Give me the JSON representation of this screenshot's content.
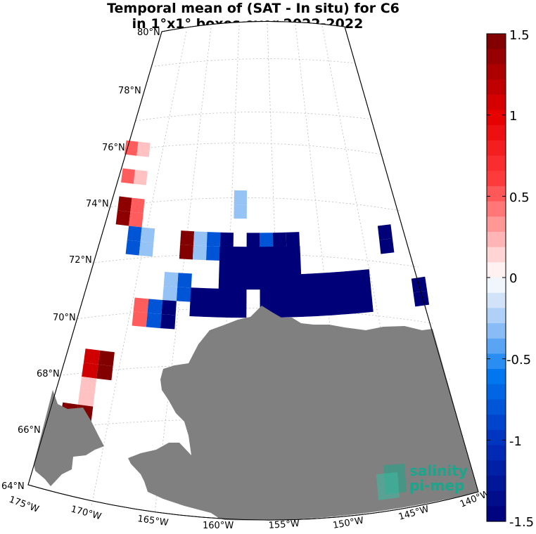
{
  "title": {
    "line1": "Temporal mean of (SAT - In situ) for C6",
    "line2": "in 1°x1° boxes over 2022-2022"
  },
  "lat_labels": [
    "80°N",
    "78°N",
    "76°N",
    "74°N",
    "72°N",
    "70°N",
    "68°N",
    "66°N",
    "64°N"
  ],
  "lon_labels": [
    "175°W",
    "170°W",
    "165°W",
    "160°W",
    "155°W",
    "150°W",
    "145°W",
    "140°W"
  ],
  "colorbar": {
    "min": -1.5,
    "max": 1.5,
    "tick_labels": [
      "1.5",
      "1",
      "0.5",
      "0",
      "-0.5",
      "-1",
      "-1.5"
    ],
    "colormap": "blue-white-red"
  },
  "colors": {
    "land": "#808080",
    "ocean": "#ffffff",
    "logo": "#1aa68a"
  },
  "logo": {
    "line1": "salinity",
    "line2": "pi-mep"
  },
  "cells": [
    {
      "lon": -167.5,
      "lat": 75.5,
      "value": 0.5
    },
    {
      "lon": -166.5,
      "lat": 75.5,
      "value": 0.2
    },
    {
      "lon": -167.5,
      "lat": 74.5,
      "value": 0.5
    },
    {
      "lon": -166.5,
      "lat": 74.5,
      "value": 0.2
    },
    {
      "lon": -167.5,
      "lat": 73.5,
      "value": 1.4
    },
    {
      "lon": -166.5,
      "lat": 73.5,
      "value": 0.5
    },
    {
      "lon": -167.5,
      "lat": 73.0,
      "value": 1.4
    },
    {
      "lon": -166.5,
      "lat": 73.0,
      "value": 0.5
    },
    {
      "lon": -166.5,
      "lat": 72.5,
      "value": -0.8
    },
    {
      "lon": -165.5,
      "lat": 72.5,
      "value": -0.3
    },
    {
      "lon": -166.5,
      "lat": 72.0,
      "value": -0.8
    },
    {
      "lon": -165.5,
      "lat": 72.0,
      "value": -0.3
    },
    {
      "lon": -162.5,
      "lat": 72.5,
      "value": 1.45
    },
    {
      "lon": -161.5,
      "lat": 72.5,
      "value": -0.3
    },
    {
      "lon": -160.5,
      "lat": 72.5,
      "value": -0.8
    },
    {
      "lon": -159.5,
      "lat": 72.5,
      "value": -1.5
    },
    {
      "lon": -157.5,
      "lat": 72.5,
      "value": -1.5
    },
    {
      "lon": -156.5,
      "lat": 72.5,
      "value": -0.8
    },
    {
      "lon": -155.5,
      "lat": 72.5,
      "value": -1.5
    },
    {
      "lon": -154.5,
      "lat": 72.5,
      "value": -1.5
    },
    {
      "lon": -158.5,
      "lat": 73.5,
      "value": -0.3
    },
    {
      "lon": -158.5,
      "lat": 74.0,
      "value": -0.3
    },
    {
      "lon": -162.5,
      "lat": 72.0,
      "value": 1.45
    },
    {
      "lon": -161.5,
      "lat": 72.0,
      "value": -0.3
    },
    {
      "lon": -160.5,
      "lat": 72.0,
      "value": -0.8
    },
    {
      "lon": -147.5,
      "lat": 72.5,
      "value": -1.5
    },
    {
      "lon": -147.5,
      "lat": 72.0,
      "value": -1.5
    },
    {
      "lon": -145.5,
      "lat": 70.5,
      "value": -1.5
    },
    {
      "lon": -145.5,
      "lat": 70.0,
      "value": -1.5
    },
    {
      "lon": -163.5,
      "lat": 71.0,
      "value": -0.3
    },
    {
      "lon": -162.5,
      "lat": 71.0,
      "value": -0.8
    },
    {
      "lon": -163.5,
      "lat": 70.5,
      "value": -0.3
    },
    {
      "lon": -162.5,
      "lat": 70.5,
      "value": -0.8
    },
    {
      "lon": -165.5,
      "lat": 70.0,
      "value": 0.5
    },
    {
      "lon": -164.5,
      "lat": 70.0,
      "value": -0.8
    },
    {
      "lon": -163.5,
      "lat": 70.0,
      "value": -1.5
    },
    {
      "lon": -165.5,
      "lat": 69.5,
      "value": 0.5
    },
    {
      "lon": -164.5,
      "lat": 69.5,
      "value": -0.8
    },
    {
      "lon": -163.5,
      "lat": 69.5,
      "value": -1.5
    },
    {
      "lon": -168.5,
      "lat": 68.0,
      "value": 1.1
    },
    {
      "lon": -167.5,
      "lat": 68.0,
      "value": 1.45
    },
    {
      "lon": -168.5,
      "lat": 67.5,
      "value": 1.1
    },
    {
      "lon": -167.5,
      "lat": 67.5,
      "value": 1.45
    },
    {
      "lon": -168.5,
      "lat": 67.0,
      "value": 0.2
    },
    {
      "lon": -168.5,
      "lat": 66.5,
      "value": 0.2
    },
    {
      "lon": -169.5,
      "lat": 66.0,
      "value": 1.45
    },
    {
      "lon": -168.5,
      "lat": 66.0,
      "value": 1.45
    },
    {
      "lon": -169.5,
      "lat": 65.5,
      "value": 1.45
    },
    {
      "lon": -168.5,
      "lat": 65.5,
      "value": 1.45
    }
  ]
}
